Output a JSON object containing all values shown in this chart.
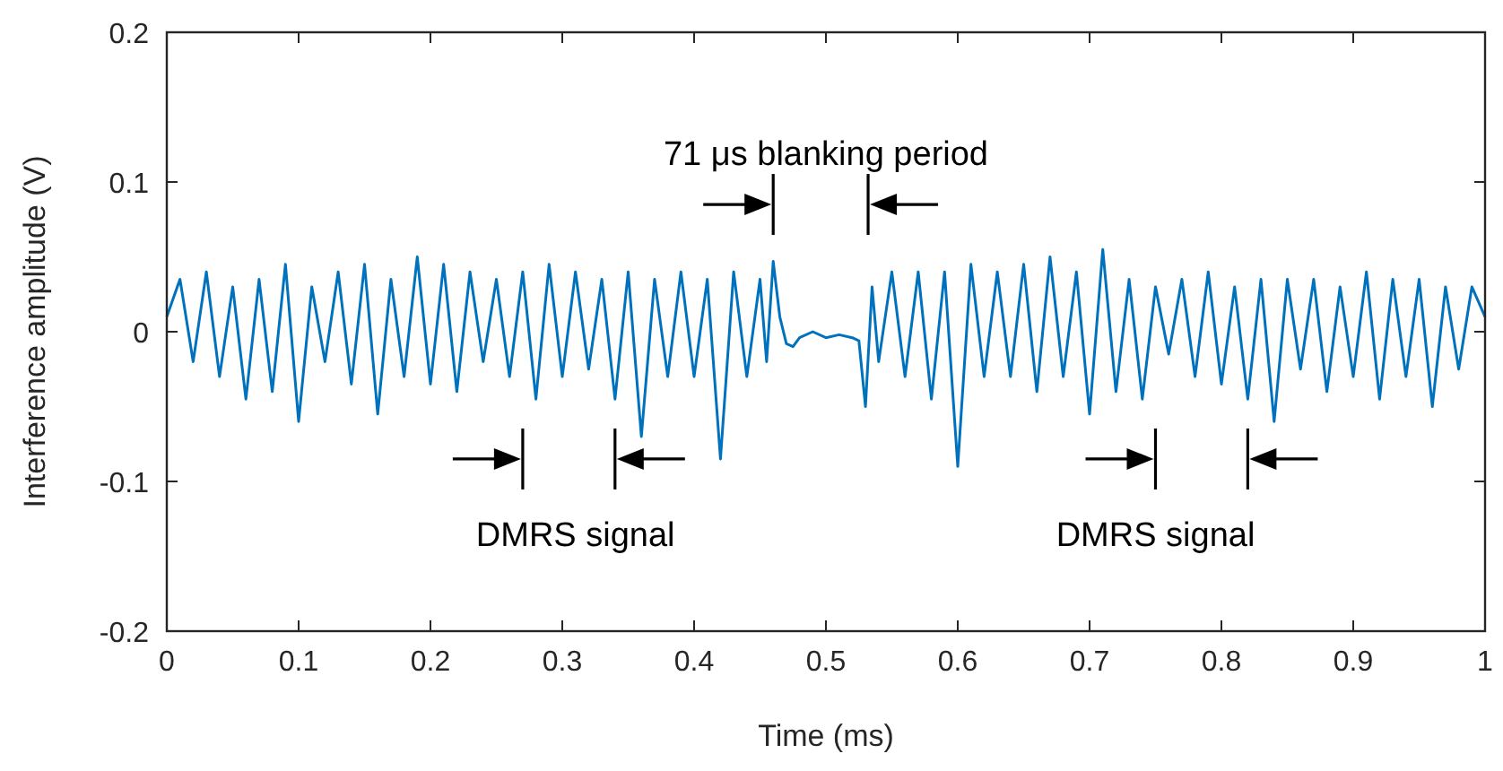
{
  "chart_data": {
    "type": "line",
    "xlabel": "Time (ms)",
    "ylabel": "Interference amplitude (V)",
    "xlim": [
      0,
      1
    ],
    "ylim": [
      -0.2,
      0.2
    ],
    "xticks": [
      0,
      0.1,
      0.2,
      0.3,
      0.4,
      0.5,
      0.6,
      0.7,
      0.8,
      0.9,
      1
    ],
    "yticks": [
      -0.2,
      -0.1,
      0,
      0.1,
      0.2
    ],
    "grid": false,
    "marker": "none",
    "line_style": "solid",
    "annotations": [
      "71 μs blanking period",
      "DMRS signal",
      "DMRS signal"
    ],
    "series": [
      {
        "color": "#0072bd",
        "x": [
          0,
          0.01,
          0.02,
          0.03,
          0.04,
          0.05,
          0.06,
          0.07,
          0.08,
          0.09,
          0.1,
          0.11,
          0.12,
          0.13,
          0.14,
          0.15,
          0.16,
          0.17,
          0.18,
          0.19,
          0.2,
          0.21,
          0.22,
          0.23,
          0.24,
          0.25,
          0.26,
          0.27,
          0.28,
          0.29,
          0.3,
          0.31,
          0.32,
          0.33,
          0.34,
          0.35,
          0.36,
          0.37,
          0.38,
          0.39,
          0.4,
          0.41,
          0.42,
          0.43,
          0.44,
          0.45,
          0.455,
          0.46,
          0.465,
          0.47,
          0.475,
          0.48,
          0.49,
          0.5,
          0.51,
          0.52,
          0.525,
          0.53,
          0.535,
          0.54,
          0.55,
          0.56,
          0.57,
          0.58,
          0.59,
          0.6,
          0.61,
          0.62,
          0.63,
          0.64,
          0.65,
          0.66,
          0.67,
          0.68,
          0.69,
          0.7,
          0.71,
          0.72,
          0.73,
          0.74,
          0.75,
          0.76,
          0.77,
          0.78,
          0.79,
          0.8,
          0.81,
          0.82,
          0.83,
          0.84,
          0.85,
          0.86,
          0.87,
          0.88,
          0.89,
          0.9,
          0.91,
          0.92,
          0.93,
          0.94,
          0.95,
          0.96,
          0.97,
          0.98,
          0.99,
          1
        ],
        "values": [
          0.01,
          0.035,
          -0.02,
          0.04,
          -0.03,
          0.03,
          -0.045,
          0.035,
          -0.04,
          0.045,
          -0.06,
          0.03,
          -0.02,
          0.04,
          -0.035,
          0.045,
          -0.055,
          0.035,
          -0.03,
          0.05,
          -0.035,
          0.045,
          -0.04,
          0.04,
          -0.02,
          0.035,
          -0.03,
          0.04,
          -0.045,
          0.045,
          -0.03,
          0.04,
          -0.025,
          0.035,
          -0.045,
          0.04,
          -0.07,
          0.035,
          -0.03,
          0.04,
          -0.03,
          0.035,
          -0.085,
          0.04,
          -0.03,
          0.035,
          -0.02,
          0.047,
          0.01,
          -0.008,
          -0.01,
          -0.004,
          0,
          -0.004,
          -0.002,
          -0.004,
          -0.006,
          -0.05,
          0.03,
          -0.02,
          0.04,
          -0.03,
          0.04,
          -0.045,
          0.04,
          -0.09,
          0.045,
          -0.03,
          0.04,
          -0.03,
          0.045,
          -0.04,
          0.05,
          -0.03,
          0.04,
          -0.055,
          0.055,
          -0.04,
          0.035,
          -0.045,
          0.03,
          -0.015,
          0.035,
          -0.03,
          0.04,
          -0.035,
          0.03,
          -0.045,
          0.035,
          -0.06,
          0.035,
          -0.025,
          0.035,
          -0.04,
          0.03,
          -0.03,
          0.04,
          -0.045,
          0.035,
          -0.03,
          0.035,
          -0.05,
          0.03,
          -0.025,
          0.03,
          0.01
        ]
      }
    ]
  }
}
